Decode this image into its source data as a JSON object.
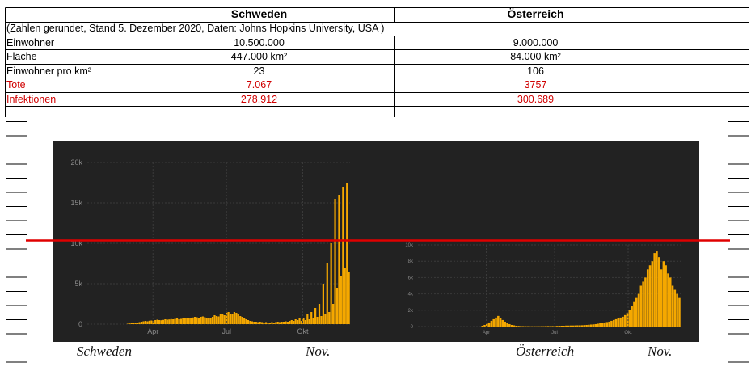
{
  "table": {
    "headers": [
      "Schweden",
      "Österreich"
    ],
    "note": "(Zahlen gerundet, Stand 5. Dezember 2020, Daten: Johns Hopkins University, USA )",
    "rows": [
      {
        "label": "Einwohner",
        "schweden": "10.500.000",
        "oesterreich": "9.000.000",
        "highlight": false
      },
      {
        "label": "Fläche",
        "schweden": "447.000 km²",
        "oesterreich": "84.000 km²",
        "highlight": false
      },
      {
        "label": "Einwohner pro km²",
        "schweden": "23",
        "oesterreich": "106",
        "highlight": false
      },
      {
        "label": "Tote",
        "schweden": "7.067",
        "oesterreich": "3757",
        "highlight": true
      },
      {
        "label": "Infektionen",
        "schweden": "278.912",
        "oesterreich": "300.689",
        "highlight": true
      }
    ]
  },
  "captions": {
    "left_country": "Schweden",
    "left_month": "Nov.",
    "right_country": "Österreich",
    "right_month": "Nov."
  },
  "colors": {
    "bar": "#f5a800",
    "chart_bg": "#222222",
    "reference_line": "#e00000",
    "highlight_text": "#d00000"
  },
  "chart_data": [
    {
      "type": "bar",
      "country": "Schweden",
      "y_ticks": [
        "0",
        "5k",
        "10k",
        "15k",
        "20k"
      ],
      "x_ticks": [
        "Apr",
        "Jul",
        "Okt"
      ],
      "ylim": [
        0,
        20000
      ],
      "values": [
        0,
        0,
        0,
        0,
        0,
        0,
        0,
        0,
        0,
        0,
        0,
        0,
        0,
        0,
        0,
        0,
        0,
        0,
        0,
        0,
        50,
        80,
        100,
        120,
        150,
        200,
        250,
        300,
        350,
        400,
        350,
        420,
        450,
        400,
        500,
        550,
        500,
        480,
        520,
        600,
        550,
        580,
        620,
        600,
        650,
        700,
        600,
        650,
        700,
        750,
        800,
        750,
        700,
        820,
        900,
        850,
        800,
        900,
        950,
        850,
        800,
        750,
        700,
        900,
        1100,
        1000,
        950,
        1200,
        1300,
        1100,
        1400,
        1500,
        1300,
        1200,
        1500,
        1400,
        1200,
        1000,
        900,
        700,
        600,
        500,
        400,
        350,
        300,
        300,
        250,
        300,
        250,
        200,
        250,
        200,
        200,
        250,
        200,
        250,
        300,
        250,
        300,
        300,
        350,
        300,
        400,
        500,
        400,
        600,
        500,
        700,
        400,
        800,
        500,
        1200,
        600,
        1500,
        700,
        2000,
        900,
        2500,
        1000,
        5000,
        1200,
        7500,
        1500,
        10000,
        2500,
        15500,
        4500,
        16000,
        6000,
        17000,
        7000,
        17500,
        6500
      ],
      "xlabel": "",
      "ylabel": ""
    },
    {
      "type": "bar",
      "country": "Österreich",
      "y_ticks": [
        "0",
        "2k",
        "4k",
        "6k",
        "8k",
        "10k"
      ],
      "x_ticks": [
        "Apr",
        "Jul",
        "Okt"
      ],
      "ylim": [
        0,
        10000
      ],
      "values": [
        0,
        0,
        0,
        0,
        0,
        0,
        0,
        0,
        0,
        0,
        0,
        0,
        0,
        0,
        0,
        0,
        0,
        0,
        0,
        0,
        0,
        0,
        0,
        0,
        0,
        0,
        0,
        0,
        100,
        200,
        350,
        500,
        700,
        900,
        1100,
        1300,
        1000,
        800,
        600,
        400,
        300,
        200,
        150,
        100,
        80,
        60,
        50,
        40,
        40,
        30,
        30,
        30,
        30,
        30,
        40,
        40,
        50,
        60,
        50,
        60,
        70,
        80,
        90,
        100,
        100,
        120,
        120,
        130,
        130,
        140,
        150,
        150,
        160,
        180,
        200,
        220,
        250,
        270,
        300,
        350,
        400,
        450,
        500,
        550,
        600,
        700,
        800,
        900,
        1000,
        1100,
        1200,
        1400,
        1700,
        2000,
        2500,
        3000,
        3500,
        4000,
        5000,
        5500,
        6000,
        7000,
        7500,
        8000,
        9000,
        9200,
        8500,
        7000,
        8000,
        7500,
        6500,
        6000,
        5000,
        4500,
        4000,
        3500
      ],
      "xlabel": "",
      "ylabel": ""
    }
  ]
}
